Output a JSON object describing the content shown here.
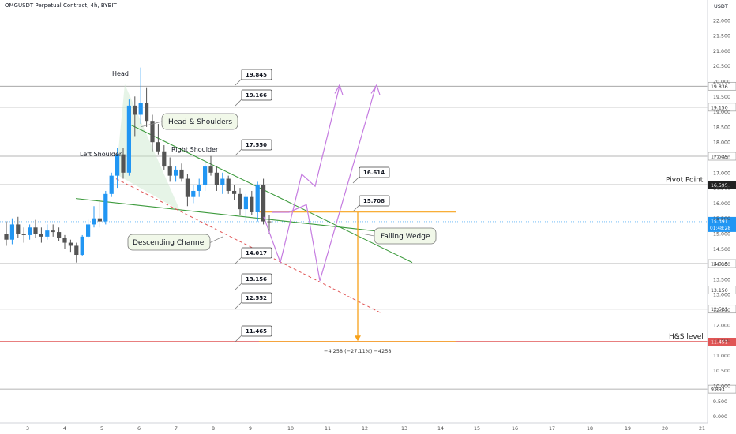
{
  "chart_title": "OMGUSDT Perpetual Contract, 4h, BYBIT",
  "price_unit": "USDT",
  "colors": {
    "up_candle": "#2196f3",
    "down_candle": "#545454",
    "hline": "#9b9b9b",
    "pivot": "#111111",
    "hs_level": "#e05555",
    "orange": "#f7a21b",
    "green": "#3c9a3c",
    "purple": "#c57be0",
    "red_dash": "#e05555",
    "current_price_bg": "#2196f3"
  },
  "price_axis_ticks": [
    "22.000",
    "21.500",
    "21.000",
    "20.500",
    "20.000",
    "19.500",
    "19.000",
    "18.500",
    "18.000",
    "17.500",
    "17.000",
    "16.500",
    "16.000",
    "15.500",
    "15.000",
    "14.500",
    "14.000",
    "13.500",
    "13.000",
    "12.500",
    "12.000",
    "11.500",
    "11.000",
    "10.500",
    "10.000",
    "9.500",
    "9.000"
  ],
  "time_axis_ticks": [
    "3",
    "4",
    "5",
    "6",
    "7",
    "8",
    "9",
    "10",
    "11",
    "12",
    "13",
    "14",
    "15",
    "16",
    "17",
    "18",
    "19",
    "20",
    "21"
  ],
  "horizontal_levels": [
    {
      "name": "level-19845",
      "value": 19.836,
      "axis_label": "19.836",
      "callout": "19.845",
      "style": "gray"
    },
    {
      "name": "level-19166",
      "value": 19.15,
      "axis_label": "19.150",
      "callout": "19.166",
      "style": "gray"
    },
    {
      "name": "level-17550",
      "value": 17.539,
      "axis_label": "17.539",
      "callout": "17.550",
      "style": "gray"
    },
    {
      "name": "level-pivot",
      "value": 16.595,
      "axis_label": "16.595",
      "callout": "16.614",
      "style": "pivot",
      "line_label": "Pivot Point"
    },
    {
      "name": "level-14015",
      "value": 14.015,
      "axis_label": "14.015",
      "callout": "14.017",
      "style": "gray"
    },
    {
      "name": "level-13150",
      "value": 13.15,
      "axis_label": "13.150",
      "callout": "13.156",
      "style": "gray"
    },
    {
      "name": "level-12521",
      "value": 12.521,
      "axis_label": "12.521",
      "callout": "12.552",
      "style": "gray"
    },
    {
      "name": "level-hs",
      "value": 11.451,
      "axis_label": "11.451",
      "callout": "11.465",
      "style": "hs",
      "line_label": "H&S level"
    },
    {
      "name": "level-9893",
      "value": 9.893,
      "axis_label": "9.893",
      "style": "gray"
    }
  ],
  "current_price": {
    "value": 15.391,
    "label": "15.391",
    "countdown": "01:48:28"
  },
  "annotations": {
    "head": "Head",
    "left_shoulder": "Left Shoulder",
    "right_shoulder": "Right Shoulder",
    "head_shoulders": "Head & Shoulders",
    "descending_channel": "Descending Channel",
    "falling_wedge": "Falling Wedge",
    "wedge_target": "15.708",
    "measure": "−4.258 (−27.11%) −4258"
  },
  "chart_data": {
    "type": "candlestick",
    "title": "OMGUSDT Perpetual Contract, 4h, BYBIT",
    "y_unit": "USDT",
    "ylim": [
      9.0,
      22.5
    ],
    "x_ticks": [
      "3",
      "4",
      "5",
      "6",
      "7",
      "8",
      "9",
      "10",
      "11",
      "12",
      "13",
      "14",
      "15",
      "16",
      "17",
      "18",
      "19",
      "20",
      "21"
    ],
    "candles": [
      {
        "o": 15.0,
        "h": 15.4,
        "l": 14.6,
        "c": 14.8
      },
      {
        "o": 14.8,
        "h": 15.5,
        "l": 14.65,
        "c": 15.3
      },
      {
        "o": 15.3,
        "h": 15.55,
        "l": 14.85,
        "c": 15.0
      },
      {
        "o": 15.0,
        "h": 15.2,
        "l": 14.7,
        "c": 14.95
      },
      {
        "o": 14.95,
        "h": 15.3,
        "l": 14.8,
        "c": 15.2
      },
      {
        "o": 15.2,
        "h": 15.45,
        "l": 14.85,
        "c": 15.0
      },
      {
        "o": 15.0,
        "h": 15.2,
        "l": 14.7,
        "c": 14.9
      },
      {
        "o": 14.9,
        "h": 15.3,
        "l": 14.8,
        "c": 15.1
      },
      {
        "o": 15.1,
        "h": 15.3,
        "l": 14.9,
        "c": 15.05
      },
      {
        "o": 15.05,
        "h": 15.2,
        "l": 14.75,
        "c": 14.85
      },
      {
        "o": 14.85,
        "h": 14.95,
        "l": 14.5,
        "c": 14.7
      },
      {
        "o": 14.7,
        "h": 14.8,
        "l": 14.4,
        "c": 14.6
      },
      {
        "o": 14.6,
        "h": 14.7,
        "l": 14.05,
        "c": 14.3
      },
      {
        "o": 14.3,
        "h": 14.95,
        "l": 14.25,
        "c": 14.9
      },
      {
        "o": 14.9,
        "h": 15.45,
        "l": 14.85,
        "c": 15.3
      },
      {
        "o": 15.3,
        "h": 15.9,
        "l": 15.2,
        "c": 15.5
      },
      {
        "o": 15.5,
        "h": 16.1,
        "l": 15.2,
        "c": 15.4
      },
      {
        "o": 15.4,
        "h": 16.4,
        "l": 15.3,
        "c": 16.3
      },
      {
        "o": 16.3,
        "h": 17.0,
        "l": 16.2,
        "c": 16.9
      },
      {
        "o": 16.9,
        "h": 17.8,
        "l": 16.5,
        "c": 17.6
      },
      {
        "o": 17.6,
        "h": 17.8,
        "l": 16.8,
        "c": 17.0
      },
      {
        "o": 17.0,
        "h": 19.4,
        "l": 16.9,
        "c": 19.2
      },
      {
        "o": 19.2,
        "h": 19.5,
        "l": 18.2,
        "c": 18.9
      },
      {
        "o": 18.9,
        "h": 20.45,
        "l": 18.6,
        "c": 19.3
      },
      {
        "o": 19.3,
        "h": 19.8,
        "l": 18.5,
        "c": 18.7
      },
      {
        "o": 18.7,
        "h": 18.9,
        "l": 17.7,
        "c": 18.0
      },
      {
        "o": 18.0,
        "h": 18.6,
        "l": 17.6,
        "c": 17.7
      },
      {
        "o": 17.7,
        "h": 17.9,
        "l": 17.1,
        "c": 17.2
      },
      {
        "o": 17.2,
        "h": 17.5,
        "l": 16.7,
        "c": 16.9
      },
      {
        "o": 16.9,
        "h": 17.2,
        "l": 16.7,
        "c": 17.1
      },
      {
        "o": 17.1,
        "h": 17.3,
        "l": 16.7,
        "c": 16.8
      },
      {
        "o": 16.8,
        "h": 16.95,
        "l": 15.9,
        "c": 16.2
      },
      {
        "o": 16.2,
        "h": 16.6,
        "l": 16.0,
        "c": 16.4
      },
      {
        "o": 16.4,
        "h": 16.8,
        "l": 16.2,
        "c": 16.6
      },
      {
        "o": 16.6,
        "h": 17.4,
        "l": 16.4,
        "c": 17.2
      },
      {
        "o": 17.2,
        "h": 17.55,
        "l": 16.9,
        "c": 17.0
      },
      {
        "o": 17.0,
        "h": 17.2,
        "l": 16.4,
        "c": 16.6
      },
      {
        "o": 16.6,
        "h": 17.0,
        "l": 16.3,
        "c": 16.8
      },
      {
        "o": 16.8,
        "h": 16.9,
        "l": 16.3,
        "c": 16.4
      },
      {
        "o": 16.4,
        "h": 16.6,
        "l": 16.1,
        "c": 16.3
      },
      {
        "o": 16.3,
        "h": 16.5,
        "l": 15.6,
        "c": 15.8
      },
      {
        "o": 15.8,
        "h": 16.3,
        "l": 15.4,
        "c": 16.2
      },
      {
        "o": 16.2,
        "h": 16.4,
        "l": 15.6,
        "c": 15.7
      },
      {
        "o": 15.7,
        "h": 16.7,
        "l": 15.4,
        "c": 16.6
      },
      {
        "o": 16.6,
        "h": 16.8,
        "l": 15.3,
        "c": 15.4
      },
      {
        "o": 15.4,
        "h": 15.6,
        "l": 15.0,
        "c": 15.39
      }
    ]
  }
}
